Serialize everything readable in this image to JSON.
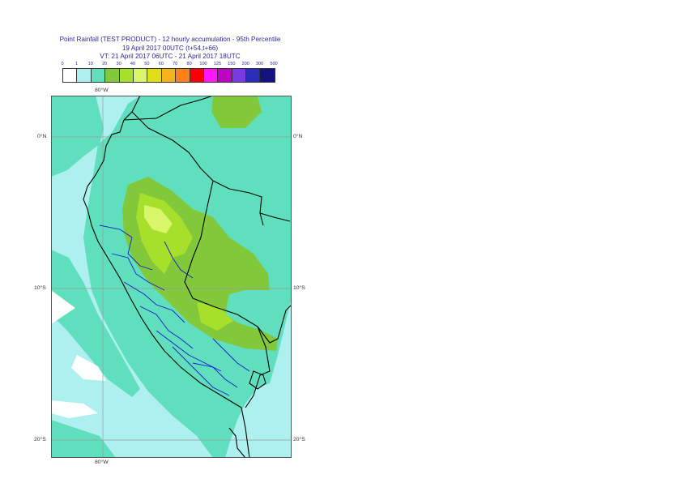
{
  "header": {
    "title_line1": "Point Rainfall (TEST PRODUCT) - 12 hourly accumulation - 95th Percentile",
    "title_line2": "19 April 2017 00UTC (t+54,t+66)",
    "title_line3": "VT: 21 April 2017 06UTC - 21 April 2017 18UTC"
  },
  "legend": {
    "labels": [
      "0",
      "1",
      "10",
      "20",
      "30",
      "40",
      "50",
      "60",
      "70",
      "80",
      "100",
      "125",
      "150",
      "200",
      "300",
      "500"
    ],
    "colors": [
      "#ffffff",
      "#aef0ef",
      "#5fdfbd",
      "#81c93a",
      "#a7e02a",
      "#d9f56a",
      "#e0df17",
      "#f6b21a",
      "#ff8019",
      "#fb0000",
      "#ff17ff",
      "#bd02c4",
      "#7a3ae5",
      "#2d2dbd",
      "#13137f"
    ]
  },
  "map": {
    "grid_labels": {
      "lon_80w_top": "80°W",
      "lon_80w_bottom": "80°W",
      "lat_0_left": "0°N",
      "lat_0_right": "0°N",
      "lat_10s_left": "10°S",
      "lat_10s_right": "10°S",
      "lat_20s_left": "20°S",
      "lat_20s_right": "20°S"
    },
    "colors": {
      "ocean_light": "#aef0ef",
      "land_teal": "#5fdfbd",
      "green": "#81c93a",
      "lime": "#a7e02a",
      "pale_yellow": "#d9f56a",
      "coast": "#000000",
      "regions": "#1a1acc",
      "grid": "#9a9a9a"
    }
  }
}
